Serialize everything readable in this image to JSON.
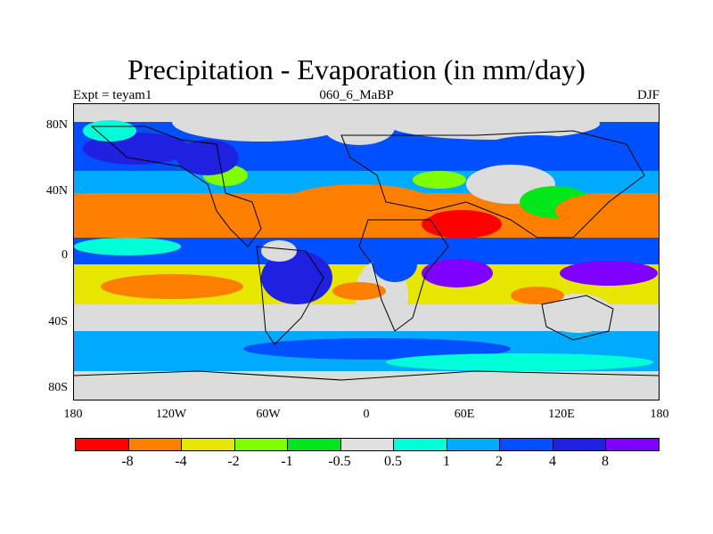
{
  "title": "Precipitation - Evaporation (in mm/day)",
  "subtitle_left": "Expt = teyam1",
  "subtitle_center": "060_6_MaBP",
  "subtitle_right": "DJF",
  "latitude_labels": [
    "80N",
    "40N",
    "0",
    "40S",
    "80S"
  ],
  "longitude_labels": [
    "180",
    "120W",
    "60W",
    "0",
    "60E",
    "120E",
    "180"
  ],
  "legend": {
    "colors": [
      "#ff0000",
      "#ff8000",
      "#e6e600",
      "#80ff00",
      "#00e61a",
      "#e0e0e0",
      "#00ffd9",
      "#00aaff",
      "#0050ff",
      "#2020e0",
      "#8000ff"
    ],
    "labels": [
      "-8",
      "-4",
      "-2",
      "-1",
      "-0.5",
      "0.5",
      "1",
      "2",
      "4",
      "8"
    ]
  },
  "regions": [
    {
      "name": "arctic-land",
      "color": "#e0e0e0"
    },
    {
      "name": "northern-ocean",
      "color": "#0050ff"
    },
    {
      "name": "subtropical-dry-north",
      "color": "#ff8000"
    },
    {
      "name": "equatorial-wet",
      "color": "#2020e0"
    },
    {
      "name": "subtropical-dry-south",
      "color": "#e6e600"
    },
    {
      "name": "southern-ocean",
      "color": "#00aaff"
    },
    {
      "name": "sahara-dry",
      "color": "#ff0000"
    },
    {
      "name": "indian-ocean-wet",
      "color": "#8000ff"
    }
  ]
}
